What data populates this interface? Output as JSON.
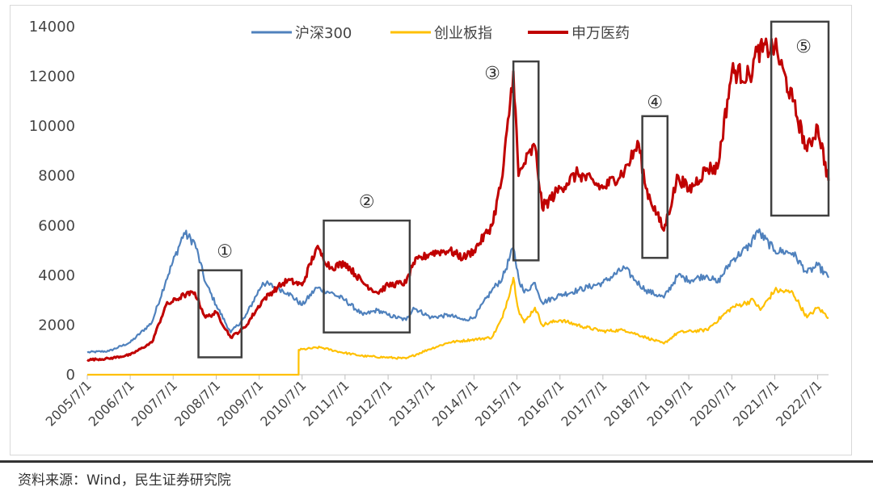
{
  "source_note": "资料来源：Wind，民生证券研究院",
  "chart_data": {
    "type": "line",
    "title": "",
    "xlabel": "",
    "ylabel": "",
    "ylim": [
      0,
      14000
    ],
    "y_ticks": [
      0,
      2000,
      4000,
      6000,
      8000,
      10000,
      12000,
      14000
    ],
    "y_tick_labels": [
      "0",
      "2000",
      "4000",
      "6000",
      "8000",
      "10000",
      "12000",
      "14000"
    ],
    "x_range": [
      "2005-07-01",
      "2022-10-01"
    ],
    "x_ticks": [
      "2005-07-01",
      "2006-07-01",
      "2007-07-01",
      "2008-07-01",
      "2009-07-01",
      "2010-07-01",
      "2011-07-01",
      "2012-07-01",
      "2013-07-01",
      "2014-07-01",
      "2015-07-01",
      "2016-07-01",
      "2017-07-01",
      "2018-07-01",
      "2019-07-01",
      "2020-07-01",
      "2021-07-01",
      "2022-07-01"
    ],
    "x_tick_labels": [
      "2005/7/1",
      "2006/7/1",
      "2007/7/1",
      "2008/7/1",
      "2009/7/1",
      "2010/7/1",
      "2011/7/1",
      "2012/7/1",
      "2013/7/1",
      "2014/7/1",
      "2015/7/1",
      "2016/7/1",
      "2017/7/1",
      "2018/7/1",
      "2019/7/1",
      "2020/7/1",
      "2021/7/1",
      "2022/7/1"
    ],
    "grid": false,
    "legend_position": "top",
    "series": [
      {
        "name": "沪深300",
        "color": "#4f81bd",
        "points": [
          [
            "2005-07-01",
            900
          ],
          [
            "2006-01-01",
            950
          ],
          [
            "2006-07-01",
            1300
          ],
          [
            "2007-01-01",
            2100
          ],
          [
            "2007-05-01",
            3800
          ],
          [
            "2007-10-01",
            5700
          ],
          [
            "2008-01-01",
            5300
          ],
          [
            "2008-04-01",
            3700
          ],
          [
            "2008-07-01",
            2800
          ],
          [
            "2008-11-01",
            1700
          ],
          [
            "2009-03-01",
            2300
          ],
          [
            "2009-08-01",
            3700
          ],
          [
            "2009-12-01",
            3500
          ],
          [
            "2010-03-01",
            3300
          ],
          [
            "2010-07-01",
            2800
          ],
          [
            "2010-11-01",
            3500
          ],
          [
            "2011-03-01",
            3300
          ],
          [
            "2011-07-01",
            3000
          ],
          [
            "2011-12-01",
            2400
          ],
          [
            "2012-04-01",
            2600
          ],
          [
            "2012-07-01",
            2400
          ],
          [
            "2012-12-01",
            2200
          ],
          [
            "2013-02-01",
            2700
          ],
          [
            "2013-07-01",
            2300
          ],
          [
            "2013-12-01",
            2400
          ],
          [
            "2014-04-01",
            2200
          ],
          [
            "2014-07-01",
            2300
          ],
          [
            "2014-12-01",
            3400
          ],
          [
            "2015-03-01",
            3900
          ],
          [
            "2015-06-01",
            5100
          ],
          [
            "2015-07-15",
            3900
          ],
          [
            "2015-09-01",
            3300
          ],
          [
            "2015-12-01",
            3700
          ],
          [
            "2016-02-01",
            2900
          ],
          [
            "2016-07-01",
            3200
          ],
          [
            "2016-12-01",
            3400
          ],
          [
            "2017-07-01",
            3700
          ],
          [
            "2018-01-01",
            4300
          ],
          [
            "2018-04-01",
            3800
          ],
          [
            "2018-07-01",
            3400
          ],
          [
            "2018-12-01",
            3100
          ],
          [
            "2019-04-01",
            4000
          ],
          [
            "2019-07-01",
            3800
          ],
          [
            "2019-12-01",
            4000
          ],
          [
            "2020-03-01",
            3700
          ],
          [
            "2020-07-01",
            4600
          ],
          [
            "2020-12-01",
            5200
          ],
          [
            "2021-02-01",
            5800
          ],
          [
            "2021-07-01",
            5000
          ],
          [
            "2021-12-01",
            4900
          ],
          [
            "2022-04-01",
            4100
          ],
          [
            "2022-07-01",
            4400
          ],
          [
            "2022-10-01",
            3900
          ]
        ]
      },
      {
        "name": "创业板指",
        "color": "#ffc000",
        "points": [
          [
            "2005-07-01",
            0
          ],
          [
            "2010-06-01",
            0
          ],
          [
            "2010-06-02",
            1000
          ],
          [
            "2010-12-01",
            1100
          ],
          [
            "2011-06-01",
            900
          ],
          [
            "2011-12-01",
            750
          ],
          [
            "2012-06-01",
            700
          ],
          [
            "2012-12-01",
            650
          ],
          [
            "2013-06-01",
            1000
          ],
          [
            "2013-12-01",
            1300
          ],
          [
            "2014-06-01",
            1400
          ],
          [
            "2014-12-01",
            1500
          ],
          [
            "2015-03-01",
            2300
          ],
          [
            "2015-06-01",
            3900
          ],
          [
            "2015-07-15",
            2600
          ],
          [
            "2015-09-01",
            2100
          ],
          [
            "2015-12-01",
            2700
          ],
          [
            "2016-02-01",
            2000
          ],
          [
            "2016-07-01",
            2200
          ],
          [
            "2017-01-01",
            1950
          ],
          [
            "2017-07-01",
            1750
          ],
          [
            "2018-01-01",
            1800
          ],
          [
            "2018-07-01",
            1500
          ],
          [
            "2018-12-01",
            1250
          ],
          [
            "2019-04-01",
            1700
          ],
          [
            "2019-12-01",
            1800
          ],
          [
            "2020-07-01",
            2700
          ],
          [
            "2021-01-01",
            3000
          ],
          [
            "2021-03-01",
            2600
          ],
          [
            "2021-07-01",
            3400
          ],
          [
            "2021-12-01",
            3300
          ],
          [
            "2022-04-01",
            2300
          ],
          [
            "2022-07-01",
            2700
          ],
          [
            "2022-10-01",
            2300
          ]
        ]
      },
      {
        "name": "申万医药",
        "color": "#c00000",
        "points": [
          [
            "2005-07-01",
            600
          ],
          [
            "2006-01-01",
            650
          ],
          [
            "2006-07-01",
            800
          ],
          [
            "2007-01-01",
            1300
          ],
          [
            "2007-05-01",
            2800
          ],
          [
            "2007-10-01",
            3200
          ],
          [
            "2008-01-01",
            3300
          ],
          [
            "2008-04-01",
            2300
          ],
          [
            "2008-07-01",
            2500
          ],
          [
            "2008-11-01",
            1500
          ],
          [
            "2009-03-01",
            1900
          ],
          [
            "2009-08-01",
            3000
          ],
          [
            "2009-12-01",
            3500
          ],
          [
            "2010-03-01",
            3800
          ],
          [
            "2010-07-01",
            3600
          ],
          [
            "2010-11-01",
            5100
          ],
          [
            "2011-03-01",
            4300
          ],
          [
            "2011-07-01",
            4500
          ],
          [
            "2011-12-01",
            3700
          ],
          [
            "2012-04-01",
            3300
          ],
          [
            "2012-07-01",
            3600
          ],
          [
            "2012-12-01",
            3700
          ],
          [
            "2013-02-01",
            4500
          ],
          [
            "2013-07-01",
            4900
          ],
          [
            "2013-12-01",
            5000
          ],
          [
            "2014-04-01",
            4700
          ],
          [
            "2014-07-01",
            5000
          ],
          [
            "2014-12-01",
            6000
          ],
          [
            "2015-03-01",
            8000
          ],
          [
            "2015-06-01",
            12200
          ],
          [
            "2015-07-15",
            8000
          ],
          [
            "2015-09-01",
            8500
          ],
          [
            "2015-12-01",
            9200
          ],
          [
            "2016-02-01",
            6700
          ],
          [
            "2016-07-01",
            7500
          ],
          [
            "2016-12-01",
            8100
          ],
          [
            "2017-07-01",
            7500
          ],
          [
            "2018-01-01",
            8200
          ],
          [
            "2018-05-01",
            9300
          ],
          [
            "2018-07-01",
            7500
          ],
          [
            "2018-12-01",
            5800
          ],
          [
            "2019-04-01",
            8000
          ],
          [
            "2019-07-01",
            7400
          ],
          [
            "2019-12-01",
            8300
          ],
          [
            "2020-03-01",
            8300
          ],
          [
            "2020-07-01",
            12200
          ],
          [
            "2020-12-01",
            12000
          ],
          [
            "2021-02-01",
            13000
          ],
          [
            "2021-07-01",
            13200
          ],
          [
            "2021-12-01",
            11000
          ],
          [
            "2022-04-01",
            9000
          ],
          [
            "2022-07-01",
            10000
          ],
          [
            "2022-10-01",
            7800
          ]
        ]
      }
    ],
    "annotations": [
      {
        "label": "①",
        "from": "2008-02-01",
        "to": "2009-02-01",
        "y_low": 700,
        "y_high": 4200
      },
      {
        "label": "②",
        "from": "2011-01-01",
        "to": "2013-01-01",
        "y_low": 1700,
        "y_high": 6200
      },
      {
        "label": "③",
        "from": "2015-06-01",
        "to": "2016-01-01",
        "y_low": 4600,
        "y_high": 12600
      },
      {
        "label": "④",
        "from": "2018-06-01",
        "to": "2019-01-01",
        "y_low": 4700,
        "y_high": 10400
      },
      {
        "label": "⑤",
        "from": "2021-06-01",
        "to": "2022-10-01",
        "y_low": 6400,
        "y_high": 14200
      }
    ]
  }
}
